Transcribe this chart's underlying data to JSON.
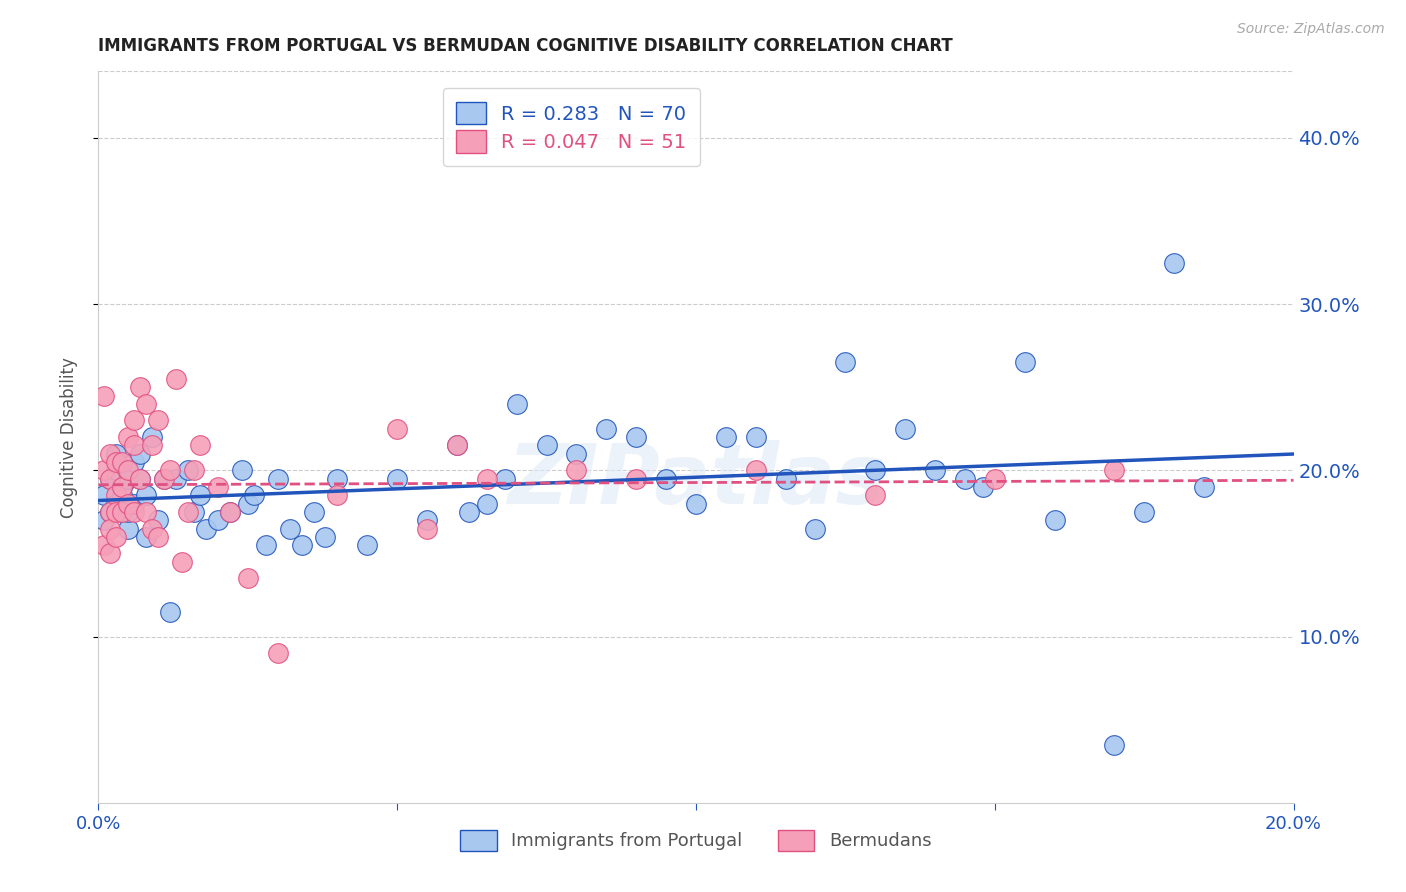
{
  "title": "IMMIGRANTS FROM PORTUGAL VS BERMUDAN COGNITIVE DISABILITY CORRELATION CHART",
  "source": "Source: ZipAtlas.com",
  "ylabel": "Cognitive Disability",
  "watermark": "ZIPatlas",
  "xlim": [
    0.0,
    0.2
  ],
  "ylim": [
    0.0,
    0.44
  ],
  "yticks": [
    0.1,
    0.2,
    0.3,
    0.4
  ],
  "xticks": [
    0.0,
    0.05,
    0.1,
    0.15,
    0.2
  ],
  "legend_labels": [
    "Immigrants from Portugal",
    "Bermudans"
  ],
  "series1_color": "#a8c8f0",
  "series2_color": "#f5a0b8",
  "line1_color": "#2255bb",
  "line2_color": "#e05080",
  "R1": 0.283,
  "N1": 70,
  "R2": 0.047,
  "N2": 51,
  "series1_x": [
    0.001,
    0.001,
    0.002,
    0.002,
    0.003,
    0.003,
    0.003,
    0.004,
    0.004,
    0.004,
    0.005,
    0.005,
    0.005,
    0.006,
    0.006,
    0.007,
    0.007,
    0.008,
    0.008,
    0.009,
    0.01,
    0.011,
    0.012,
    0.013,
    0.015,
    0.016,
    0.017,
    0.018,
    0.02,
    0.022,
    0.024,
    0.025,
    0.026,
    0.028,
    0.03,
    0.032,
    0.034,
    0.036,
    0.038,
    0.04,
    0.045,
    0.05,
    0.055,
    0.06,
    0.062,
    0.065,
    0.068,
    0.07,
    0.075,
    0.08,
    0.085,
    0.09,
    0.095,
    0.1,
    0.105,
    0.11,
    0.115,
    0.12,
    0.125,
    0.13,
    0.135,
    0.14,
    0.145,
    0.148,
    0.155,
    0.16,
    0.17,
    0.175,
    0.18,
    0.185
  ],
  "series1_y": [
    0.17,
    0.185,
    0.175,
    0.195,
    0.2,
    0.18,
    0.21,
    0.19,
    0.175,
    0.185,
    0.165,
    0.195,
    0.175,
    0.205,
    0.18,
    0.195,
    0.21,
    0.185,
    0.16,
    0.22,
    0.17,
    0.195,
    0.115,
    0.195,
    0.2,
    0.175,
    0.185,
    0.165,
    0.17,
    0.175,
    0.2,
    0.18,
    0.185,
    0.155,
    0.195,
    0.165,
    0.155,
    0.175,
    0.16,
    0.195,
    0.155,
    0.195,
    0.17,
    0.215,
    0.175,
    0.18,
    0.195,
    0.24,
    0.215,
    0.21,
    0.225,
    0.22,
    0.195,
    0.18,
    0.22,
    0.22,
    0.195,
    0.165,
    0.265,
    0.2,
    0.225,
    0.2,
    0.195,
    0.19,
    0.265,
    0.17,
    0.035,
    0.175,
    0.325,
    0.19
  ],
  "series2_x": [
    0.001,
    0.001,
    0.001,
    0.002,
    0.002,
    0.002,
    0.002,
    0.002,
    0.003,
    0.003,
    0.003,
    0.003,
    0.004,
    0.004,
    0.004,
    0.005,
    0.005,
    0.005,
    0.006,
    0.006,
    0.006,
    0.007,
    0.007,
    0.008,
    0.008,
    0.009,
    0.009,
    0.01,
    0.01,
    0.011,
    0.012,
    0.013,
    0.014,
    0.015,
    0.016,
    0.017,
    0.02,
    0.022,
    0.025,
    0.03,
    0.04,
    0.05,
    0.055,
    0.06,
    0.065,
    0.08,
    0.09,
    0.11,
    0.13,
    0.15,
    0.17
  ],
  "series2_y": [
    0.2,
    0.245,
    0.155,
    0.21,
    0.195,
    0.175,
    0.165,
    0.15,
    0.205,
    0.185,
    0.175,
    0.16,
    0.205,
    0.19,
    0.175,
    0.22,
    0.2,
    0.18,
    0.23,
    0.215,
    0.175,
    0.25,
    0.195,
    0.24,
    0.175,
    0.215,
    0.165,
    0.23,
    0.16,
    0.195,
    0.2,
    0.255,
    0.145,
    0.175,
    0.2,
    0.215,
    0.19,
    0.175,
    0.135,
    0.09,
    0.185,
    0.225,
    0.165,
    0.215,
    0.195,
    0.2,
    0.195,
    0.2,
    0.185,
    0.195,
    0.2
  ]
}
